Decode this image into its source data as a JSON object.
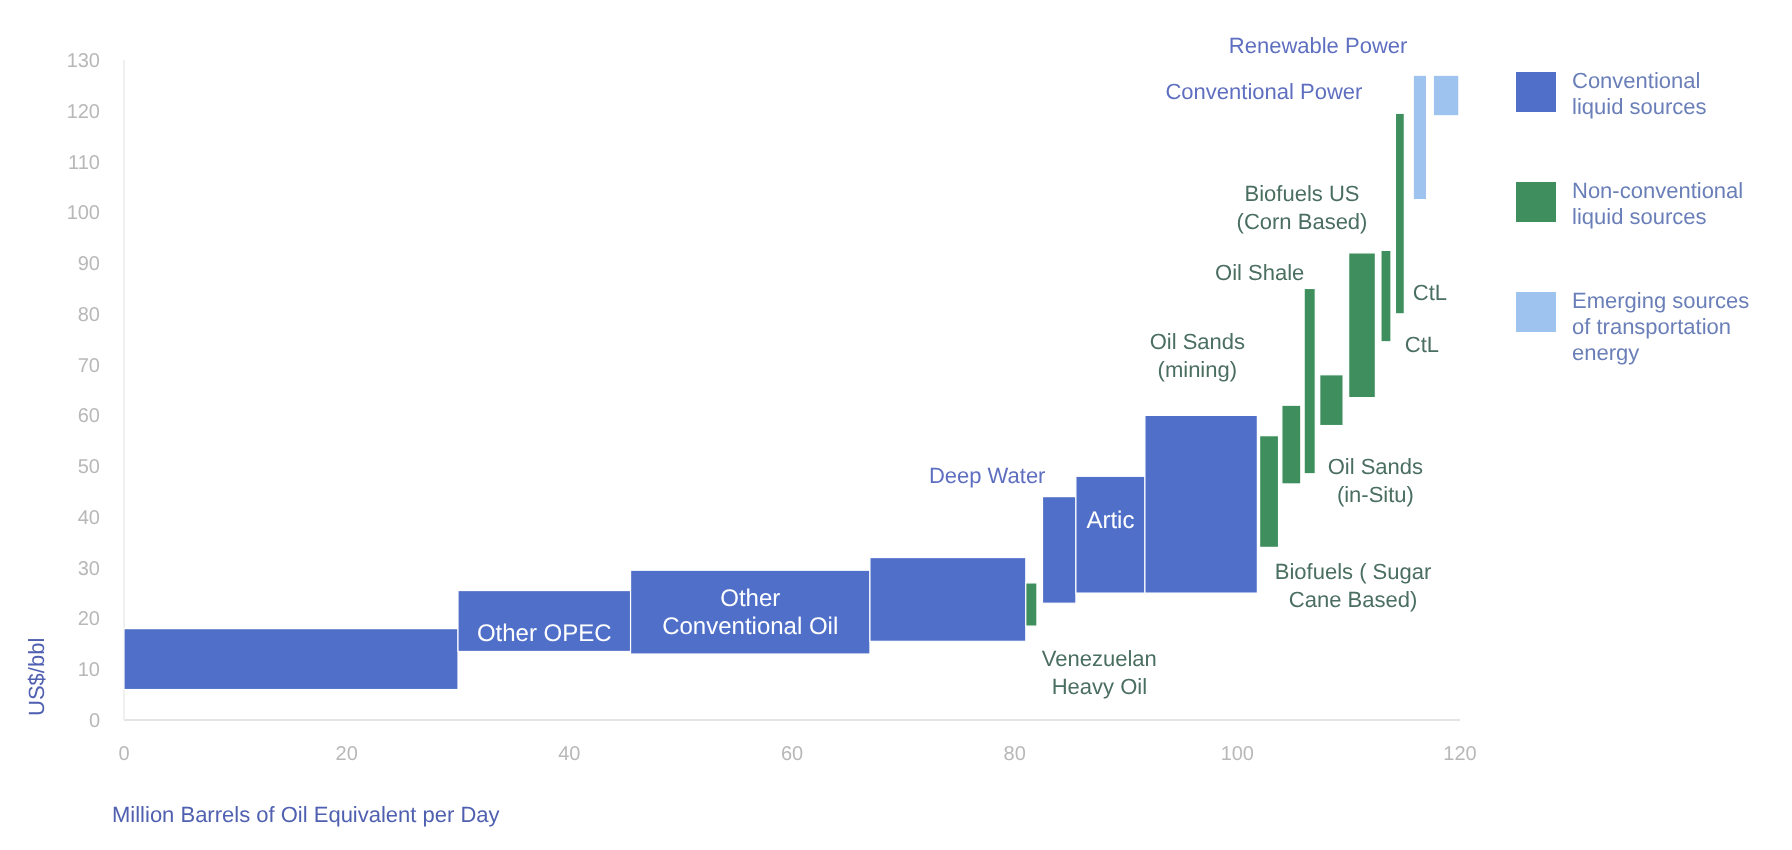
{
  "chart_data": {
    "type": "histogram",
    "xlabel": "Million Barrels of Oil Equivalent per Day",
    "ylabel": "US$/bbl",
    "xlim": [
      0,
      120
    ],
    "xticks": [
      0,
      20,
      40,
      60,
      80,
      100,
      120
    ],
    "ylim": [
      0,
      130
    ],
    "yticks": [
      0,
      10,
      20,
      30,
      40,
      50,
      60,
      70,
      80,
      90,
      100,
      110,
      120,
      130
    ],
    "legend": "right",
    "grid": false,
    "bins": [
      0,
      30,
      45.5,
      67,
      81,
      82,
      82.5,
      85.5,
      91.7,
      101.8,
      102,
      103.7,
      104,
      105.7,
      106,
      107,
      107.4,
      109.5,
      110,
      112.4,
      112.9,
      113.8,
      114.2,
      115,
      115.8,
      117,
      117.6,
      119.9
    ],
    "series": [
      {
        "name": "Conventional liquid sources",
        "color": "#4f6fc8",
        "values": [
          12,
          12,
          16.5,
          16.5,
          null,
          null,
          21,
          23,
          35,
          null,
          null,
          null,
          null,
          null,
          null,
          null,
          null,
          null,
          null,
          null,
          null,
          null,
          null,
          null,
          null,
          null,
          null
        ],
        "base": [
          6,
          13.5,
          13,
          15.5,
          null,
          null,
          23,
          25,
          25,
          null,
          null,
          null,
          null,
          null,
          null,
          null,
          null,
          null,
          null,
          null,
          null,
          null,
          null,
          null,
          null,
          null,
          null
        ]
      },
      {
        "name": "Non-conventional liquid sources",
        "color": "#3f8f5e",
        "values": [
          null,
          null,
          null,
          null,
          8.5,
          null,
          null,
          null,
          null,
          null,
          22,
          null,
          15.5,
          null,
          36.5,
          null,
          10,
          null,
          28.5,
          null,
          18,
          null,
          39.5,
          null,
          null,
          null,
          null
        ],
        "base": [
          null,
          null,
          null,
          null,
          18.5,
          null,
          null,
          null,
          null,
          null,
          34,
          null,
          46.5,
          null,
          48.5,
          null,
          58,
          null,
          63.5,
          null,
          74.5,
          null,
          80,
          null,
          null,
          null,
          null
        ]
      },
      {
        "name": "Emerging sources of transportation energy",
        "color": "#9ec3ef",
        "values": [
          null,
          null,
          null,
          null,
          null,
          null,
          null,
          null,
          null,
          null,
          null,
          null,
          null,
          null,
          null,
          null,
          null,
          null,
          null,
          null,
          null,
          null,
          null,
          null,
          24.5,
          null,
          8
        ],
        "base": [
          null,
          null,
          null,
          null,
          null,
          null,
          null,
          null,
          null,
          null,
          null,
          null,
          null,
          null,
          null,
          null,
          null,
          null,
          null,
          null,
          null,
          null,
          null,
          null,
          102.5,
          null,
          119
        ]
      }
    ],
    "annotations": [
      {
        "text": "Other OPEC",
        "x": 37.75,
        "y": 25.5
      },
      {
        "text": "Other\nConventional Oil",
        "x": 56.25,
        "y": 29.5
      },
      {
        "text": "Artic",
        "x": 88.6,
        "y": 48
      },
      {
        "text": "Deep Water",
        "x": 84,
        "y": 44
      },
      {
        "text": "Venezuelan\nHeavy Oil",
        "x": 81.5,
        "y": 18.5
      },
      {
        "text": "Biofuels ( Sugar\nCane Based)",
        "x": 102.85,
        "y": 34
      },
      {
        "text": "Oil Sands\n(in-Situ)",
        "x": 108.45,
        "y": 58
      },
      {
        "text": "Oil Sands\n(mining)",
        "x": 104.85,
        "y": 62
      },
      {
        "text": "Oil Shale",
        "x": 106.5,
        "y": 85
      },
      {
        "text": "Biofuels US\n(Corn Based)",
        "x": 111.2,
        "y": 92
      },
      {
        "text": "CtL",
        "x": 113.35,
        "y": 74.5
      },
      {
        "text": "CtL",
        "x": 114.6,
        "y": 80
      },
      {
        "text": "Conventional Power",
        "x": 116.4,
        "y": 127
      },
      {
        "text": "Renewable Power",
        "x": 118.75,
        "y": 127
      }
    ]
  }
}
